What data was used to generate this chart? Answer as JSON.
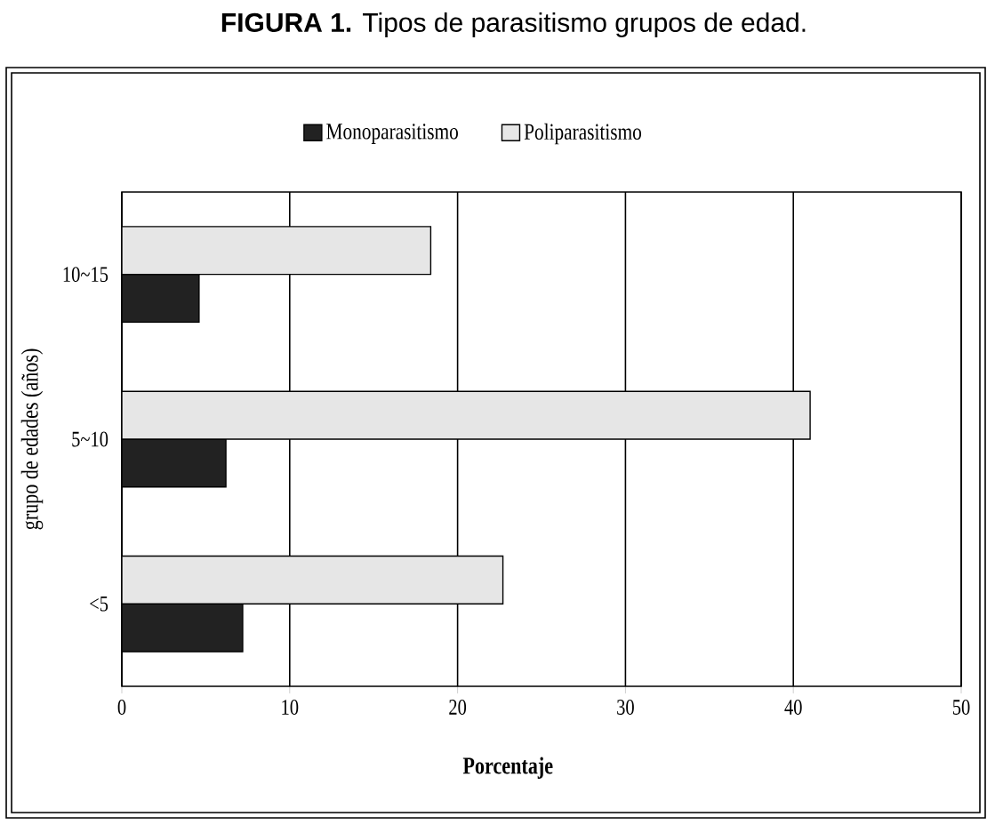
{
  "chart_data": {
    "type": "bar",
    "orientation": "horizontal",
    "title": "**FIGURA 1.** Tipos de parasitismo grupos de edad.",
    "xlabel": "Porcentaje",
    "ylabel": "grupo de edades (años)",
    "categories": [
      "10~15",
      "5~10",
      "<5"
    ],
    "series": [
      {
        "name": "Monoparasitismo",
        "color": "#222222",
        "values": [
          4.6,
          6.2,
          7.2
        ]
      },
      {
        "name": "Poliparasitismo",
        "color": "#e6e6e6",
        "values": [
          18.4,
          41.0,
          22.7
        ]
      }
    ],
    "xlim": [
      0,
      50
    ],
    "xticks": [
      0,
      10,
      20,
      30,
      40,
      50
    ],
    "grid": "x",
    "legend": "top"
  }
}
